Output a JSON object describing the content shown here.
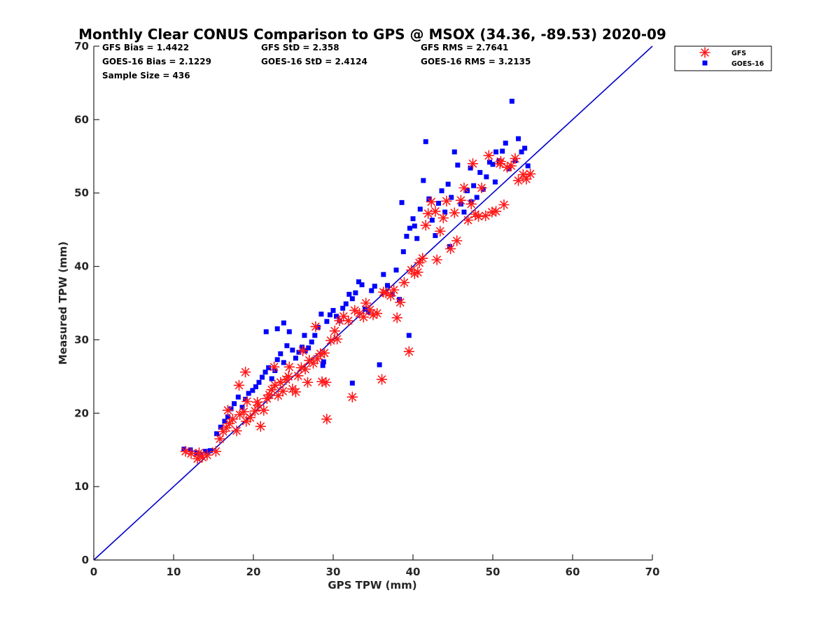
{
  "chart_data": {
    "type": "scatter",
    "title": "Monthly Clear CONUS Comparison to GPS @ MSOX (34.36, -89.53) 2020-09",
    "xlabel": "GPS TPW (mm)",
    "ylabel": "Measured TPW (mm)",
    "xlim": [
      0,
      70
    ],
    "ylim": [
      0,
      70
    ],
    "xticks": [
      0,
      10,
      20,
      30,
      40,
      50,
      60,
      70
    ],
    "yticks": [
      0,
      10,
      20,
      30,
      40,
      50,
      60,
      70
    ],
    "grid": false,
    "legend_position": "outside-top-right",
    "stats": [
      [
        "GFS Bias = 1.4422",
        "GFS StD = 2.358",
        "GFS RMS = 2.7641"
      ],
      [
        "GOES-16 Bias = 2.1229",
        "GOES-16 StD = 2.4124",
        "GOES-16 RMS = 3.2135"
      ],
      [
        "Sample Size = 436"
      ]
    ],
    "reference_line": {
      "name": "1:1",
      "x": [
        0,
        70
      ],
      "y": [
        0,
        70
      ],
      "color": "#0000cc"
    },
    "series": [
      {
        "name": "GFS",
        "marker": "asterisk",
        "color": "#ff1a1a",
        "points": [
          [
            11.5,
            14.8
          ],
          [
            12.2,
            14.5
          ],
          [
            13.0,
            13.8
          ],
          [
            13.6,
            14.0
          ],
          [
            14.2,
            14.3
          ],
          [
            13.2,
            14.6
          ],
          [
            15.3,
            14.8
          ],
          [
            15.8,
            16.5
          ],
          [
            16.2,
            17.5
          ],
          [
            16.6,
            18.0
          ],
          [
            17.0,
            18.6
          ],
          [
            16.8,
            20.4
          ],
          [
            17.4,
            19.2
          ],
          [
            17.9,
            17.6
          ],
          [
            18.3,
            19.8
          ],
          [
            18.8,
            20.2
          ],
          [
            19.1,
            18.9
          ],
          [
            19.6,
            19.4
          ],
          [
            19.2,
            21.6
          ],
          [
            18.2,
            23.8
          ],
          [
            19.0,
            25.6
          ],
          [
            20.2,
            20.3
          ],
          [
            20.6,
            21.1
          ],
          [
            20.9,
            18.2
          ],
          [
            21.3,
            20.4
          ],
          [
            21.7,
            22.0
          ],
          [
            22.0,
            22.5
          ],
          [
            22.3,
            23.2
          ],
          [
            22.7,
            23.8
          ],
          [
            23.1,
            22.4
          ],
          [
            23.4,
            24.2
          ],
          [
            23.7,
            23.0
          ],
          [
            24.1,
            24.6
          ],
          [
            24.4,
            25.0
          ],
          [
            24.9,
            23.3
          ],
          [
            25.3,
            22.9
          ],
          [
            25.6,
            25.1
          ],
          [
            26.0,
            26.2
          ],
          [
            26.5,
            26.0
          ],
          [
            27.0,
            27.2
          ],
          [
            26.8,
            24.2
          ],
          [
            27.5,
            26.8
          ],
          [
            28.0,
            27.4
          ],
          [
            28.4,
            28.1
          ],
          [
            28.6,
            24.3
          ],
          [
            29.1,
            24.2
          ],
          [
            28.9,
            28.2
          ],
          [
            29.2,
            19.2
          ],
          [
            29.7,
            29.9
          ],
          [
            30.2,
            31.2
          ],
          [
            30.8,
            32.6
          ],
          [
            31.3,
            33.2
          ],
          [
            31.9,
            32.6
          ],
          [
            32.4,
            22.2
          ],
          [
            32.7,
            34.0
          ],
          [
            33.3,
            33.6
          ],
          [
            33.8,
            33.1
          ],
          [
            34.1,
            35.0
          ],
          [
            34.6,
            34.1
          ],
          [
            35.0,
            33.4
          ],
          [
            35.5,
            33.6
          ],
          [
            36.1,
            24.6
          ],
          [
            36.6,
            36.4
          ],
          [
            37.2,
            36.0
          ],
          [
            37.6,
            36.8
          ],
          [
            38.0,
            33.0
          ],
          [
            38.4,
            35.1
          ],
          [
            38.9,
            37.8
          ],
          [
            39.5,
            28.4
          ],
          [
            39.8,
            39.5
          ],
          [
            40.2,
            39.0
          ],
          [
            40.6,
            39.2
          ],
          [
            40.8,
            40.5
          ],
          [
            41.2,
            41.1
          ],
          [
            41.6,
            45.6
          ],
          [
            41.9,
            47.2
          ],
          [
            42.3,
            48.8
          ],
          [
            42.8,
            47.5
          ],
          [
            43.0,
            40.9
          ],
          [
            43.4,
            44.8
          ],
          [
            43.8,
            46.6
          ],
          [
            44.2,
            48.9
          ],
          [
            44.7,
            42.4
          ],
          [
            45.2,
            47.3
          ],
          [
            45.5,
            43.5
          ],
          [
            46.0,
            49.0
          ],
          [
            46.4,
            50.7
          ],
          [
            46.9,
            46.3
          ],
          [
            47.3,
            48.5
          ],
          [
            47.8,
            47.1
          ],
          [
            48.2,
            46.8
          ],
          [
            48.6,
            50.7
          ],
          [
            49.1,
            46.9
          ],
          [
            49.5,
            55.1
          ],
          [
            49.9,
            47.4
          ],
          [
            50.4,
            47.5
          ],
          [
            50.9,
            54.0
          ],
          [
            51.4,
            48.4
          ],
          [
            51.8,
            53.5
          ],
          [
            52.3,
            53.7
          ],
          [
            52.8,
            54.7
          ],
          [
            53.2,
            51.7
          ],
          [
            53.8,
            52.5
          ],
          [
            54.2,
            51.9
          ],
          [
            54.7,
            52.6
          ],
          [
            51.0,
            54.3
          ],
          [
            47.5,
            54.0
          ],
          [
            36.3,
            36.5
          ],
          [
            24.5,
            26.3
          ],
          [
            26.2,
            28.5
          ],
          [
            20.5,
            21.5
          ],
          [
            22.6,
            26.3
          ],
          [
            27.8,
            31.8
          ],
          [
            30.5,
            30.1
          ]
        ]
      },
      {
        "name": "GOES-16",
        "marker": "square",
        "color": "#0000ff",
        "points": [
          [
            11.3,
            15.1
          ],
          [
            12.1,
            15.0
          ],
          [
            12.9,
            14.6
          ],
          [
            13.4,
            14.4
          ],
          [
            14.0,
            14.8
          ],
          [
            14.6,
            14.9
          ],
          [
            15.4,
            17.2
          ],
          [
            15.9,
            18.1
          ],
          [
            16.4,
            18.9
          ],
          [
            16.8,
            19.5
          ],
          [
            17.2,
            20.6
          ],
          [
            17.6,
            21.3
          ],
          [
            18.1,
            22.2
          ],
          [
            18.6,
            20.8
          ],
          [
            19.0,
            21.9
          ],
          [
            19.4,
            22.7
          ],
          [
            19.9,
            23.1
          ],
          [
            20.3,
            23.6
          ],
          [
            20.7,
            24.2
          ],
          [
            21.1,
            24.9
          ],
          [
            21.5,
            25.6
          ],
          [
            21.9,
            26.2
          ],
          [
            22.3,
            24.7
          ],
          [
            22.7,
            25.8
          ],
          [
            23.0,
            27.3
          ],
          [
            23.4,
            28.1
          ],
          [
            23.8,
            26.9
          ],
          [
            24.2,
            29.2
          ],
          [
            24.5,
            31.1
          ],
          [
            24.9,
            28.6
          ],
          [
            25.3,
            27.5
          ],
          [
            25.7,
            28.3
          ],
          [
            26.1,
            29.0
          ],
          [
            26.5,
            28.5
          ],
          [
            26.9,
            28.9
          ],
          [
            27.3,
            29.7
          ],
          [
            27.7,
            30.6
          ],
          [
            28.1,
            31.7
          ],
          [
            28.5,
            33.5
          ],
          [
            28.8,
            27.0
          ],
          [
            29.2,
            32.5
          ],
          [
            29.6,
            33.4
          ],
          [
            30.0,
            34.0
          ],
          [
            30.4,
            33.2
          ],
          [
            30.8,
            32.6
          ],
          [
            31.2,
            34.3
          ],
          [
            31.6,
            34.9
          ],
          [
            32.0,
            36.2
          ],
          [
            32.4,
            35.6
          ],
          [
            32.8,
            36.4
          ],
          [
            33.2,
            37.9
          ],
          [
            33.6,
            37.5
          ],
          [
            34.0,
            34.2
          ],
          [
            34.4,
            33.8
          ],
          [
            34.8,
            36.7
          ],
          [
            35.2,
            37.3
          ],
          [
            35.8,
            26.6
          ],
          [
            36.3,
            38.9
          ],
          [
            36.8,
            37.4
          ],
          [
            37.4,
            36.2
          ],
          [
            37.9,
            39.5
          ],
          [
            38.3,
            35.5
          ],
          [
            38.8,
            42.0
          ],
          [
            39.2,
            44.1
          ],
          [
            39.6,
            45.2
          ],
          [
            39.5,
            30.6
          ],
          [
            40.0,
            46.5
          ],
          [
            40.5,
            43.8
          ],
          [
            40.9,
            47.8
          ],
          [
            41.3,
            51.7
          ],
          [
            41.6,
            57.0
          ],
          [
            42.0,
            49.2
          ],
          [
            42.4,
            46.3
          ],
          [
            42.8,
            44.2
          ],
          [
            43.2,
            48.6
          ],
          [
            43.6,
            50.3
          ],
          [
            44.0,
            47.4
          ],
          [
            44.4,
            51.2
          ],
          [
            44.8,
            49.4
          ],
          [
            45.2,
            55.6
          ],
          [
            45.6,
            53.8
          ],
          [
            46.0,
            48.5
          ],
          [
            46.4,
            47.4
          ],
          [
            46.8,
            50.3
          ],
          [
            47.2,
            53.4
          ],
          [
            47.6,
            51.0
          ],
          [
            48.0,
            49.4
          ],
          [
            48.4,
            52.8
          ],
          [
            48.8,
            50.5
          ],
          [
            49.2,
            52.2
          ],
          [
            49.6,
            54.2
          ],
          [
            50.0,
            53.9
          ],
          [
            50.4,
            55.6
          ],
          [
            50.8,
            54.4
          ],
          [
            51.2,
            55.7
          ],
          [
            51.6,
            56.8
          ],
          [
            52.0,
            53.3
          ],
          [
            52.4,
            62.5
          ],
          [
            52.8,
            54.4
          ],
          [
            53.2,
            57.4
          ],
          [
            53.6,
            55.6
          ],
          [
            54.0,
            56.1
          ],
          [
            54.4,
            53.7
          ],
          [
            21.6,
            31.1
          ],
          [
            23.0,
            31.5
          ],
          [
            23.8,
            32.3
          ],
          [
            32.4,
            24.1
          ],
          [
            28.7,
            26.5
          ],
          [
            38.6,
            48.7
          ],
          [
            40.2,
            45.5
          ],
          [
            44.6,
            42.7
          ],
          [
            47.3,
            48.8
          ],
          [
            50.3,
            51.5
          ],
          [
            26.4,
            30.6
          ]
        ]
      }
    ]
  }
}
